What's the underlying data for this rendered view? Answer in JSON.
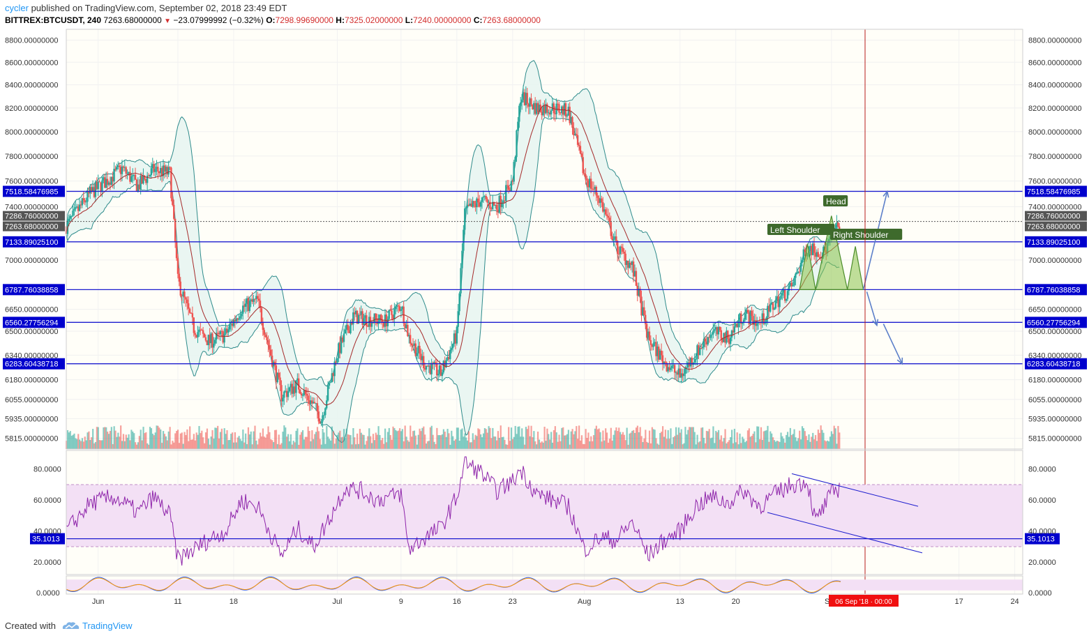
{
  "header": {
    "author": "cycler",
    "published": "published on TradingView.com, September 02, 2018 23:49 EDT",
    "symbol": "BITTREX:BTCUSDT, 240",
    "last": "7263.68000000",
    "change": "−23.07999992 (−0.32%)",
    "o_label": "O:",
    "o_value": "7298.99690000",
    "h_label": "H:",
    "h_value": "7325.02000000",
    "l_label": "L:",
    "l_value": "7240.00000000",
    "c_label": "C:",
    "c_value": "7263.68000000"
  },
  "footer": {
    "created": "Created with",
    "brand": "TradingView"
  },
  "colors": {
    "bull": "#26a69a",
    "bear": "#ef5350",
    "bb": "#2e8b8b",
    "bb_fill": "#e8f5f1",
    "ma": "#a52a2a",
    "hline": "#1c1ccf",
    "rsi": "#8e24aa",
    "rsi_band": "#f3e0f5",
    "pattern": "#8bc34a",
    "arrow": "#5c7fc9",
    "vline": "#b71c1c",
    "label_bg": "#0000cd"
  },
  "chart_data": {
    "type": "candlestick",
    "title": "BITTREX:BTCUSDT, 240",
    "x_start": "2018-05-28",
    "x_end": "2018-09-25",
    "x_ticks": [
      {
        "date": "2018-06-01",
        "label": "Jun"
      },
      {
        "date": "2018-06-11",
        "label": "11"
      },
      {
        "date": "2018-06-18",
        "label": "18"
      },
      {
        "date": "2018-07-01",
        "label": "Jul"
      },
      {
        "date": "2018-07-09",
        "label": "9"
      },
      {
        "date": "2018-07-16",
        "label": "16"
      },
      {
        "date": "2018-07-23",
        "label": "23"
      },
      {
        "date": "2018-08-01",
        "label": "Aug"
      },
      {
        "date": "2018-08-13",
        "label": "13"
      },
      {
        "date": "2018-08-20",
        "label": "20"
      },
      {
        "date": "2018-09-01",
        "label": "Sep"
      },
      {
        "date": "2018-09-17",
        "label": "17"
      },
      {
        "date": "2018-09-24",
        "label": "24"
      }
    ],
    "y_scale": "log",
    "ylim": [
      5750,
      8900
    ],
    "y_ticks": [
      "8800.00000000",
      "8600.00000000",
      "8400.00000000",
      "8200.00000000",
      "8000.00000000",
      "7800.00000000",
      "7600.00000000",
      "7400.00000000",
      "7000.00000000",
      "6650.00000000",
      "6500.00000000",
      "6340.00000000",
      "6180.00000000",
      "6055.00000000",
      "5935.00000000",
      "5815.00000000"
    ],
    "price_points": [
      [
        "2018-05-28",
        7250
      ],
      [
        "2018-05-31",
        7500
      ],
      [
        "2018-06-02",
        7600
      ],
      [
        "2018-06-04",
        7700
      ],
      [
        "2018-06-06",
        7560
      ],
      [
        "2018-06-08",
        7690
      ],
      [
        "2018-06-10",
        7660
      ],
      [
        "2018-06-11",
        6850
      ],
      [
        "2018-06-13",
        6520
      ],
      [
        "2018-06-15",
        6430
      ],
      [
        "2018-06-17",
        6480
      ],
      [
        "2018-06-19",
        6660
      ],
      [
        "2018-06-21",
        6710
      ],
      [
        "2018-06-22",
        6480
      ],
      [
        "2018-06-24",
        6080
      ],
      [
        "2018-06-26",
        6150
      ],
      [
        "2018-06-28",
        6020
      ],
      [
        "2018-06-29",
        5930
      ],
      [
        "2018-07-01",
        6350
      ],
      [
        "2018-07-03",
        6600
      ],
      [
        "2018-07-05",
        6580
      ],
      [
        "2018-07-07",
        6570
      ],
      [
        "2018-07-09",
        6680
      ],
      [
        "2018-07-10",
        6460
      ],
      [
        "2018-07-12",
        6280
      ],
      [
        "2018-07-14",
        6220
      ],
      [
        "2018-07-16",
        6480
      ],
      [
        "2018-07-17",
        7350
      ],
      [
        "2018-07-19",
        7450
      ],
      [
        "2018-07-21",
        7400
      ],
      [
        "2018-07-23",
        7600
      ],
      [
        "2018-07-24",
        8300
      ],
      [
        "2018-07-26",
        8200
      ],
      [
        "2018-07-28",
        8200
      ],
      [
        "2018-07-30",
        8170
      ],
      [
        "2018-08-01",
        7650
      ],
      [
        "2018-08-03",
        7450
      ],
      [
        "2018-08-05",
        7100
      ],
      [
        "2018-08-07",
        6950
      ],
      [
        "2018-08-09",
        6450
      ],
      [
        "2018-08-11",
        6300
      ],
      [
        "2018-08-13",
        6200
      ],
      [
        "2018-08-15",
        6350
      ],
      [
        "2018-08-17",
        6500
      ],
      [
        "2018-08-19",
        6450
      ],
      [
        "2018-08-21",
        6620
      ],
      [
        "2018-08-23",
        6550
      ],
      [
        "2018-08-25",
        6700
      ],
      [
        "2018-08-27",
        6800
      ],
      [
        "2018-08-29",
        7100
      ],
      [
        "2018-08-31",
        7050
      ],
      [
        "2018-09-02",
        7263.68
      ]
    ],
    "horizontal_levels": [
      {
        "value": 7518.58476985,
        "label": "7518.58476985"
      },
      {
        "value": 7133.890251,
        "label": "7133.89025100"
      },
      {
        "value": 6787.76038858,
        "label": "6787.76038858"
      },
      {
        "value": 6560.27756294,
        "label": "6560.27756294"
      },
      {
        "value": 6283.60438718,
        "label": "6283.60438718"
      }
    ],
    "price_labels": [
      {
        "value": 7286.76,
        "label": "7286.76000000"
      },
      {
        "value": 7263.68,
        "label": "7263.68000000"
      }
    ],
    "annotations": {
      "left_shoulder": "Left Shoulder",
      "head": "Head",
      "right_shoulder": "Right Shoulder",
      "time_marker": "06 Sep '18 · 00:00"
    },
    "rsi": {
      "ylim": [
        12,
        92
      ],
      "band": [
        30,
        70
      ],
      "y_ticks": [
        "80.0000",
        "60.0000",
        "40.0000",
        "20.0000"
      ],
      "level": {
        "value": 35.1013,
        "label": "35.1013"
      },
      "points": [
        [
          "2018-05-28",
          40
        ],
        [
          "2018-05-31",
          58
        ],
        [
          "2018-06-03",
          62
        ],
        [
          "2018-06-06",
          52
        ],
        [
          "2018-06-08",
          62
        ],
        [
          "2018-06-10",
          50
        ],
        [
          "2018-06-11",
          22
        ],
        [
          "2018-06-13",
          28
        ],
        [
          "2018-06-15",
          35
        ],
        [
          "2018-06-17",
          40
        ],
        [
          "2018-06-19",
          60
        ],
        [
          "2018-06-21",
          56
        ],
        [
          "2018-06-24",
          24
        ],
        [
          "2018-06-26",
          42
        ],
        [
          "2018-06-28",
          30
        ],
        [
          "2018-06-30",
          48
        ],
        [
          "2018-07-02",
          68
        ],
        [
          "2018-07-04",
          66
        ],
        [
          "2018-07-06",
          60
        ],
        [
          "2018-07-09",
          64
        ],
        [
          "2018-07-10",
          28
        ],
        [
          "2018-07-12",
          36
        ],
        [
          "2018-07-14",
          42
        ],
        [
          "2018-07-16",
          62
        ],
        [
          "2018-07-17",
          84
        ],
        [
          "2018-07-19",
          78
        ],
        [
          "2018-07-21",
          66
        ],
        [
          "2018-07-23",
          72
        ],
        [
          "2018-07-24",
          80
        ],
        [
          "2018-07-26",
          64
        ],
        [
          "2018-07-28",
          60
        ],
        [
          "2018-07-30",
          56
        ],
        [
          "2018-08-01",
          28
        ],
        [
          "2018-08-03",
          36
        ],
        [
          "2018-08-05",
          34
        ],
        [
          "2018-08-07",
          46
        ],
        [
          "2018-08-09",
          24
        ],
        [
          "2018-08-11",
          34
        ],
        [
          "2018-08-13",
          40
        ],
        [
          "2018-08-15",
          56
        ],
        [
          "2018-08-17",
          62
        ],
        [
          "2018-08-19",
          58
        ],
        [
          "2018-08-21",
          66
        ],
        [
          "2018-08-23",
          56
        ],
        [
          "2018-08-25",
          64
        ],
        [
          "2018-08-27",
          70
        ],
        [
          "2018-08-29",
          72
        ],
        [
          "2018-08-30",
          46
        ],
        [
          "2018-09-01",
          64
        ],
        [
          "2018-09-02",
          68
        ]
      ]
    },
    "stoch": {
      "ylim": [
        0,
        100
      ],
      "band": [
        20,
        80
      ],
      "y_ticks": [
        "0.0000"
      ]
    }
  }
}
